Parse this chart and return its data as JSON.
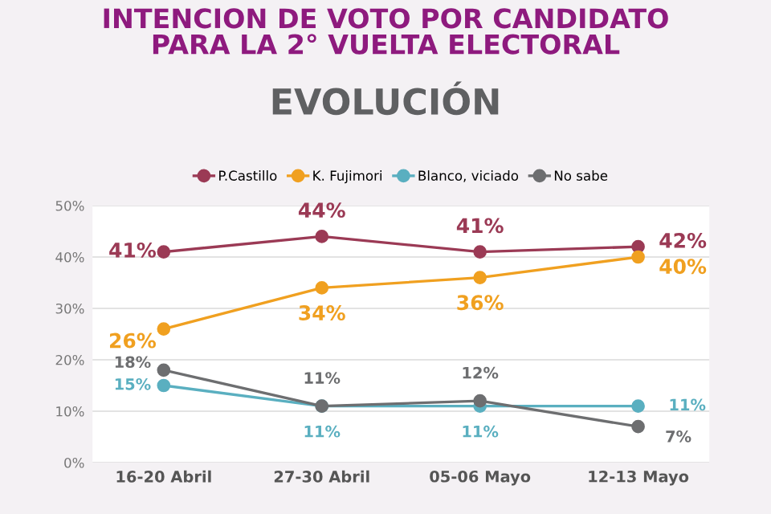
{
  "chart_data": {
    "type": "line",
    "title": "INTENCION DE VOTO POR CANDIDATO\nPARA LA 2° VUELTA ELECTORAL",
    "subtitle": "EVOLUCIÓN",
    "categories": [
      "16-20 Abril",
      "27-30 Abril",
      "05-06 Mayo",
      "12-13 Mayo"
    ],
    "series": [
      {
        "name": "P.Castillo",
        "color": "#9b3a55",
        "values": [
          41,
          44,
          41,
          42
        ],
        "value_labels": [
          "41%",
          "44%",
          "41%",
          "42%"
        ]
      },
      {
        "name": "K. Fujimori",
        "color": "#f0a020",
        "values": [
          26,
          34,
          36,
          40
        ],
        "value_labels": [
          "26%",
          "34%",
          "36%",
          "40%"
        ]
      },
      {
        "name": "Blanco, viciado",
        "color": "#5aafc0",
        "values": [
          15,
          11,
          11,
          11
        ],
        "value_labels": [
          "15%",
          "11%",
          "11%",
          "11%"
        ]
      },
      {
        "name": "No sabe",
        "color": "#6d6e70",
        "values": [
          18,
          11,
          12,
          7
        ],
        "value_labels": [
          "18%",
          "11%",
          "12%",
          "7%"
        ]
      }
    ],
    "ylim": [
      0,
      50
    ],
    "yticks": [
      {
        "value": 0,
        "label": "0%"
      },
      {
        "value": 10,
        "label": "10%"
      },
      {
        "value": 20,
        "label": "20%"
      },
      {
        "value": 30,
        "label": "30%"
      },
      {
        "value": 40,
        "label": "40%"
      },
      {
        "value": 50,
        "label": "50%"
      }
    ],
    "grid": "y",
    "legend": "top",
    "marker": "circle",
    "line_style": "solid"
  }
}
